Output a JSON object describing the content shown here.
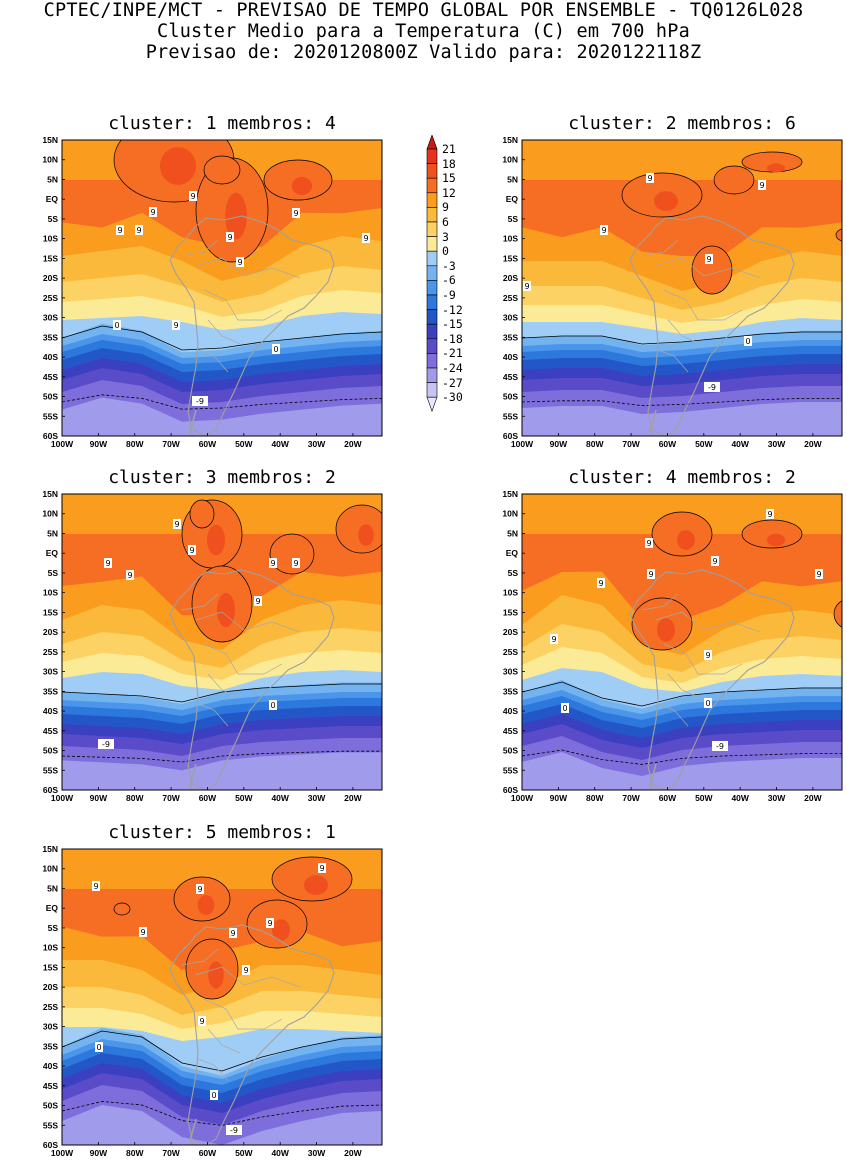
{
  "header": {
    "line1": "CPTEC/INPE/MCT - PREVISAO DE TEMPO GLOBAL POR ENSEMBLE - TQ0126L028",
    "line2": "Cluster Medio para a Temperatura (C) em 700 hPa",
    "line3": "Previsao de: 2020120800Z   Valido para: 2020122118Z"
  },
  "axis": {
    "lat_labels": [
      "15N",
      "10N",
      "5N",
      "EQ",
      "5S",
      "10S",
      "15S",
      "20S",
      "25S",
      "30S",
      "35S",
      "40S",
      "45S",
      "50S",
      "55S",
      "60S"
    ],
    "lon_labels": [
      "100W",
      "90W",
      "80W",
      "70W",
      "60W",
      "50W",
      "40W",
      "30W",
      "20W"
    ]
  },
  "legend": {
    "labels": [
      "21",
      "18",
      "15",
      "12",
      "9",
      "6",
      "3",
      "0",
      "-3",
      "-6",
      "-9",
      "-12",
      "-15",
      "-18",
      "-21",
      "-24",
      "-27",
      "-30"
    ],
    "colors": [
      "#c81a14",
      "#e6321e",
      "#f0501e",
      "#f56e23",
      "#fa9c1e",
      "#fbb93c",
      "#fdd264",
      "#fceb96",
      "#a0cdf5",
      "#73b4f0",
      "#4b96eb",
      "#2d78dc",
      "#2357c8",
      "#3b40c0",
      "#5a4bc8",
      "#7d6edc",
      "#a09beb",
      "#c8c3f5",
      "#e6e6fa"
    ]
  },
  "clusters": [
    {
      "title": "cluster: 1   membros: 4",
      "labels": {
        "warm": [
          "9",
          "9",
          "9",
          "9",
          "9",
          "9",
          "9",
          "9",
          "9"
        ],
        "zero": "0",
        "minus": "-9"
      }
    },
    {
      "title": "cluster: 2   membros: 6",
      "labels": {
        "warm": [
          "9",
          "9",
          "9",
          "9",
          "9"
        ],
        "zero": "0",
        "minus": "-9"
      }
    },
    {
      "title": "cluster: 3   membros: 2",
      "labels": {
        "warm": [
          "9",
          "9",
          "9",
          "9",
          "9",
          "9",
          "9"
        ],
        "zero": "0",
        "minus": "-9"
      }
    },
    {
      "title": "cluster: 4   membros: 2",
      "labels": {
        "warm": [
          "9",
          "9",
          "9",
          "9",
          "9",
          "9",
          "9",
          "9"
        ],
        "zero": "0",
        "minus": "-9"
      }
    },
    {
      "title": "cluster: 5   membros: 1",
      "labels": {
        "warm": [
          "9",
          "9",
          "9",
          "9",
          "9",
          "9",
          "9",
          "9"
        ],
        "zero": "0",
        "minus": "-9"
      }
    }
  ]
}
